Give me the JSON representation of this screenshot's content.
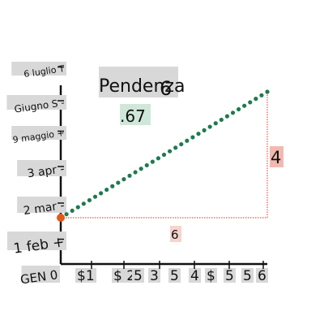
{
  "chart_data": {
    "type": "line",
    "title": "Pendenza",
    "title_suffix": "6",
    "slope_text": ".67",
    "y_tick_labels": [
      "GEN 0",
      "1 feb +",
      "2 mar -",
      "3 apr -",
      "9 maggio +",
      "Giugno S -",
      "6 luglio T"
    ],
    "x_tick_labels": [
      "$1",
      "$ 2",
      "5",
      "3",
      "5",
      "4",
      "$",
      "5",
      "5",
      "6"
    ],
    "x": [
      0,
      0.5,
      1,
      1.5,
      2,
      2.5,
      3,
      3.5,
      4,
      4.5,
      5,
      5.5,
      6
    ],
    "y": [
      0,
      0.33,
      0.67,
      1,
      1.33,
      1.67,
      2,
      2.33,
      2.67,
      3,
      3.33,
      3.67,
      4
    ],
    "xlim": [
      0,
      6
    ],
    "ylim": [
      0,
      4
    ],
    "run_label": "6",
    "rise_label": "4",
    "colors": {
      "line": "#1e7a50",
      "start_point": "#e05a1a",
      "triangle": "#e03020",
      "axis": "#111111",
      "label_bg": "#d8d8d8",
      "slope_bg": "#cfe7d9",
      "run_bg": "#f6d3cc",
      "rise_bg": "#f3b9ae"
    }
  }
}
